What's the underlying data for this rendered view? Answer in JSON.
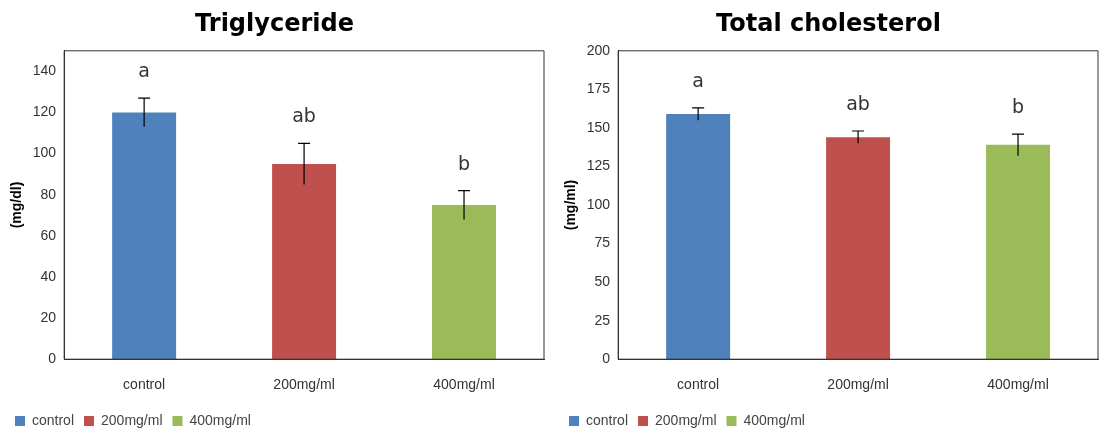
{
  "chart_data": [
    {
      "type": "bar",
      "title": "Triglyceride",
      "ylabel": "(mg/dl)",
      "categories": [
        "control",
        "200mg/ml",
        "400mg/ml"
      ],
      "series": [
        {
          "name": "control",
          "color": "#4f81bd",
          "values": [
            120,
            null,
            null
          ],
          "errors": [
            7,
            null,
            null
          ]
        },
        {
          "name": "200mg/ml",
          "color": "#c0504d",
          "values": [
            null,
            95,
            null
          ],
          "errors": [
            null,
            10,
            null
          ]
        },
        {
          "name": "400mg/ml",
          "color": "#9bbb59",
          "values": [
            null,
            null,
            75
          ],
          "errors": [
            null,
            null,
            7
          ]
        }
      ],
      "ylim": [
        0,
        150
      ],
      "yticks": [
        0,
        20,
        40,
        60,
        80,
        100,
        120,
        140
      ],
      "legend": "bottom",
      "annotations": [
        "a",
        "ab",
        "b"
      ]
    },
    {
      "type": "bar",
      "title": "Total cholesterol",
      "ylabel": "(mg/ml)",
      "categories": [
        "control",
        "200mg/ml",
        "400mg/ml"
      ],
      "series": [
        {
          "name": "control",
          "color": "#4f81bd",
          "values": [
            159,
            null,
            null
          ],
          "errors": [
            4,
            null,
            null
          ]
        },
        {
          "name": "200mg/ml",
          "color": "#c0504d",
          "values": [
            null,
            144,
            null
          ],
          "errors": [
            null,
            4,
            null
          ]
        },
        {
          "name": "400mg/ml",
          "color": "#9bbb59",
          "values": [
            null,
            null,
            139
          ],
          "errors": [
            null,
            null,
            7
          ]
        }
      ],
      "ylim": [
        0,
        200
      ],
      "yticks": [
        0,
        25,
        50,
        75,
        100,
        125,
        150,
        175,
        200
      ],
      "legend": "bottom",
      "annotations": [
        "a",
        "ab",
        "b"
      ]
    }
  ]
}
